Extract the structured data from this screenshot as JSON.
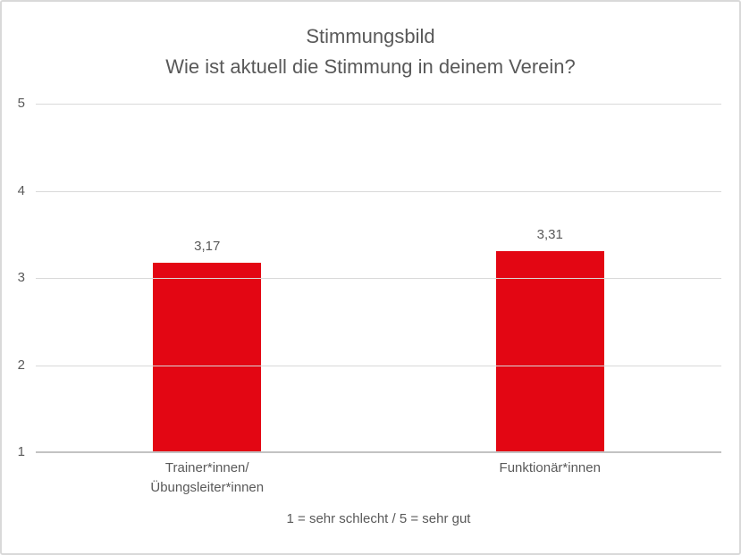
{
  "frame": {
    "background": "#ffffff",
    "border_color": "#d9d9d9"
  },
  "chart_data": {
    "type": "bar",
    "title": "Stimmungsbild\nWie ist aktuell die Stimmung in deinem Verein?",
    "title_lines": [
      "Stimmungsbild",
      "Wie ist aktuell die Stimmung in deinem Verein?"
    ],
    "categories": [
      "Trainer*innen/\nÜbungsleiter*innen",
      "Funktionär*innen"
    ],
    "values": [
      3.17,
      3.31
    ],
    "value_labels": [
      "3,17",
      "3,31"
    ],
    "xlabel": "",
    "ylabel": "",
    "ylim": [
      1,
      5
    ],
    "yticks": [
      1,
      2,
      3,
      4,
      5
    ],
    "grid": true,
    "legend": "none",
    "bar_color": "#e30613",
    "gridline_color": "#d9d9d9",
    "text_color": "#595959",
    "footnote": "1 = sehr schlecht / 5 = sehr gut"
  }
}
